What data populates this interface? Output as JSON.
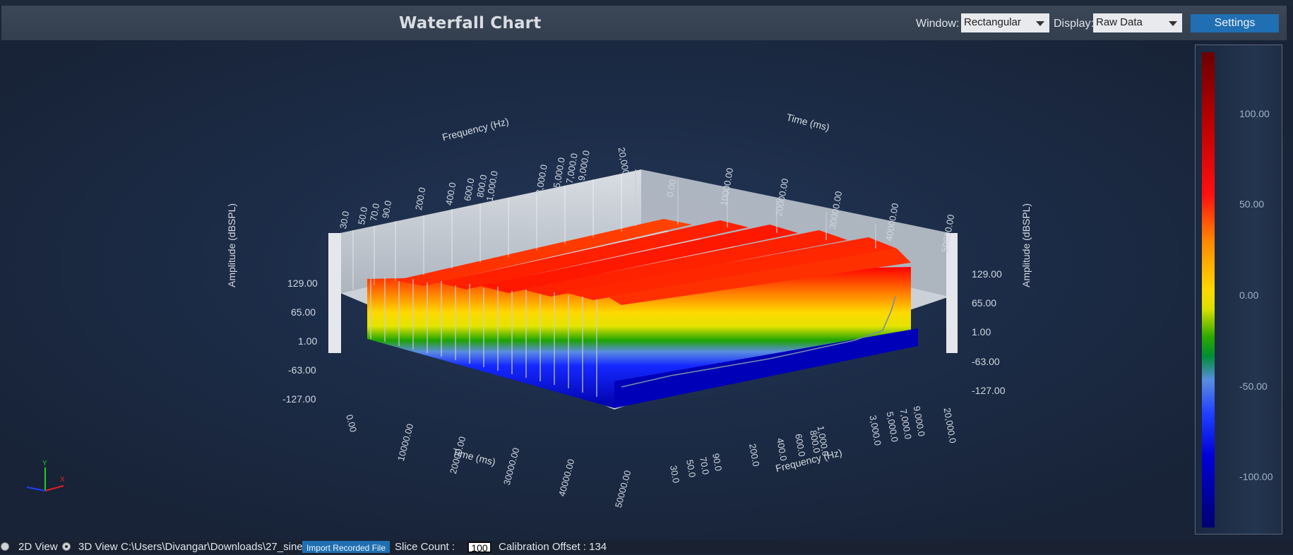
{
  "header": {
    "title": "Waterfall Chart",
    "window_label": "Window:",
    "window_value": "Rectangular",
    "display_label": "Display:",
    "display_value": "Raw Data",
    "settings_label": "Settings"
  },
  "chart": {
    "freq_axis_title": "Frequency (Hz)",
    "time_axis_title": "Time (ms)",
    "amp_axis_title": "Amplitude (dBSPL)",
    "freq_ticks": [
      "30.0",
      "50.0",
      "70.0",
      "90.0",
      "200.0",
      "400.0",
      "600.0",
      "800.0",
      "1,000.0",
      "3,000.0",
      "5,000.0",
      "7,000.0",
      "9,000.0",
      "20,000.0"
    ],
    "time_ticks": [
      "0.00",
      "10000.00",
      "20000.00",
      "30000.00",
      "40000.00",
      "50000.00"
    ],
    "amp_ticks": [
      "129.00",
      "65.00",
      "1.00",
      "-63.00",
      "-127.00"
    ],
    "colorbar_ticks": [
      "100.00",
      "50.00",
      "0.00",
      "-50.00",
      "-100.00"
    ],
    "axis_triad": {
      "x": "X",
      "y": "Y"
    }
  },
  "footer": {
    "view_2d": "2D View",
    "view_3d": "3D View",
    "file_path": "C:\\Users\\Divangar\\Downloads\\27_sine",
    "import_label": "Import Recorded File",
    "slice_count_label": "Slice Count :",
    "slice_count_value": "100",
    "calibration_label": "Calibration Offset : 134"
  }
}
